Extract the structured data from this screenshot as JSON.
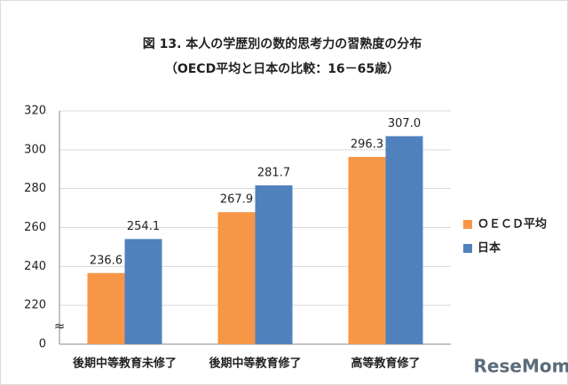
{
  "chart_data": {
    "type": "bar",
    "title": "図 13.  本人の学歴別の数的思考力の習熟度の分布",
    "subtitle": "（OECD平均と日本の比較：16－65歳）",
    "categories": [
      "後期中等教育未修了",
      "後期中等教育修了",
      "高等教育修了"
    ],
    "series": [
      {
        "name": "ＯＥＣＤ平均",
        "color": "#f79646",
        "values": [
          236.6,
          267.9,
          296.3
        ],
        "value_labels": [
          "236.6",
          "267.9",
          "296.3"
        ]
      },
      {
        "name": "日本",
        "color": "#4f81bd",
        "values": [
          254.1,
          281.7,
          307.0
        ],
        "value_labels": [
          "254.1",
          "281.7",
          "307.0"
        ]
      }
    ],
    "ylim": [
      0,
      320
    ],
    "yticks": [
      0,
      220,
      240,
      260,
      280,
      300,
      320
    ],
    "axis_break_label": "≈",
    "grid": true,
    "legend": "right",
    "watermark": "ReseMom"
  }
}
